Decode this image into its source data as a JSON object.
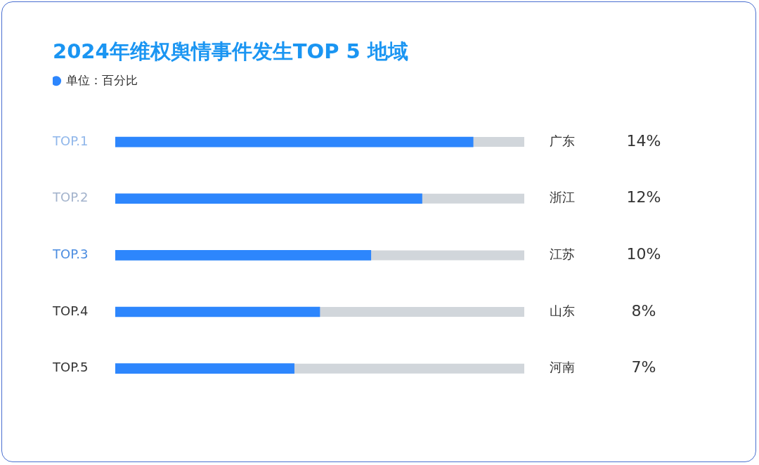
{
  "chart_data": {
    "type": "bar",
    "orientation": "horizontal",
    "title": "2024年维权舆情事件发生TOP 5 地域",
    "categories": [
      "广东",
      "浙江",
      "江苏",
      "山东",
      "河南"
    ],
    "series": [
      {
        "name": "单位：百分比",
        "color": "#2d86fd",
        "values": [
          14,
          12,
          10,
          8,
          7
        ],
        "value_labels": [
          "14%",
          "12%",
          "10%",
          "8%",
          "7%"
        ]
      }
    ],
    "annotations": [
      "TOP.1",
      "TOP.2",
      "TOP.3",
      "TOP.4",
      "TOP.5"
    ],
    "legend": "top left",
    "grid": false
  }
}
